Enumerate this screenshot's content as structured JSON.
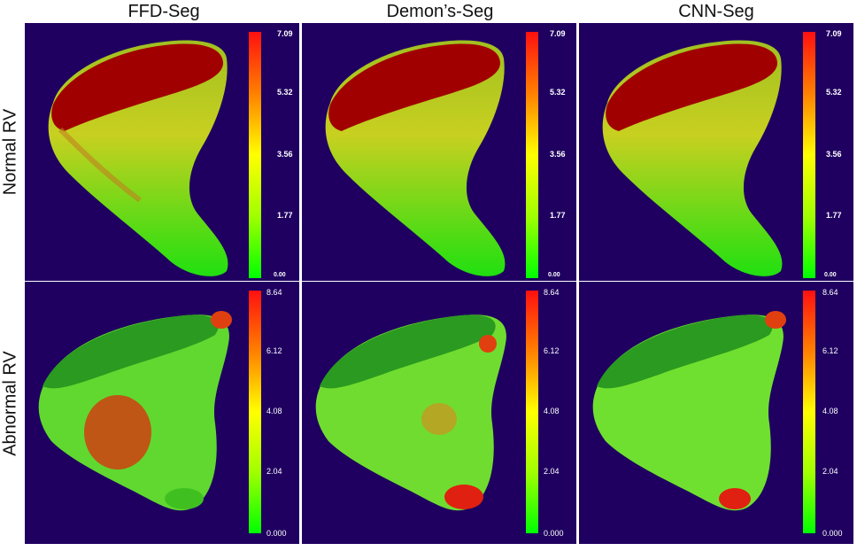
{
  "columns": [
    "FFD-Seg",
    "Demon’s-Seg",
    "CNN-Seg"
  ],
  "rows": [
    "Normal RV",
    "Abnormal RV"
  ],
  "colorbar_ticks": {
    "normal": [
      "7.09",
      "5.32",
      "3.56",
      "1.77",
      "0.00"
    ],
    "abnormal": [
      "8.64",
      "6.12",
      "4.08",
      "2.04",
      "0.000"
    ]
  },
  "colors": {
    "background": "#1f0060",
    "low": "#00ff00",
    "mid": "#ffff00",
    "high": "#ff0000"
  }
}
